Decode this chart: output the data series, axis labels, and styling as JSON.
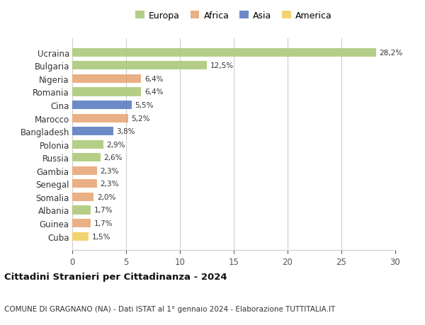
{
  "countries": [
    "Ucraina",
    "Bulgaria",
    "Nigeria",
    "Romania",
    "Cina",
    "Marocco",
    "Bangladesh",
    "Polonia",
    "Russia",
    "Gambia",
    "Senegal",
    "Somalia",
    "Albania",
    "Guinea",
    "Cuba"
  ],
  "values": [
    28.2,
    12.5,
    6.4,
    6.4,
    5.5,
    5.2,
    3.8,
    2.9,
    2.6,
    2.3,
    2.3,
    2.0,
    1.7,
    1.7,
    1.5
  ],
  "labels": [
    "28,2%",
    "12,5%",
    "6,4%",
    "6,4%",
    "5,5%",
    "5,2%",
    "3,8%",
    "2,9%",
    "2,6%",
    "2,3%",
    "2,3%",
    "2,0%",
    "1,7%",
    "1,7%",
    "1,5%"
  ],
  "continent": [
    "Europa",
    "Europa",
    "Africa",
    "Europa",
    "Asia",
    "Africa",
    "Asia",
    "Europa",
    "Europa",
    "Africa",
    "Africa",
    "Africa",
    "Europa",
    "Africa",
    "America"
  ],
  "colors": {
    "Europa": "#adc97a",
    "Africa": "#e8a878",
    "Asia": "#5c7dc0",
    "America": "#f0d060"
  },
  "xlim": [
    0,
    30
  ],
  "xticks": [
    0,
    5,
    10,
    15,
    20,
    25,
    30
  ],
  "title": "Cittadini Stranieri per Cittadinanza - 2024",
  "subtitle": "COMUNE DI GRAGNANO (NA) - Dati ISTAT al 1° gennaio 2024 - Elaborazione TUTTITALIA.IT",
  "background_color": "#ffffff",
  "grid_color": "#cccccc"
}
